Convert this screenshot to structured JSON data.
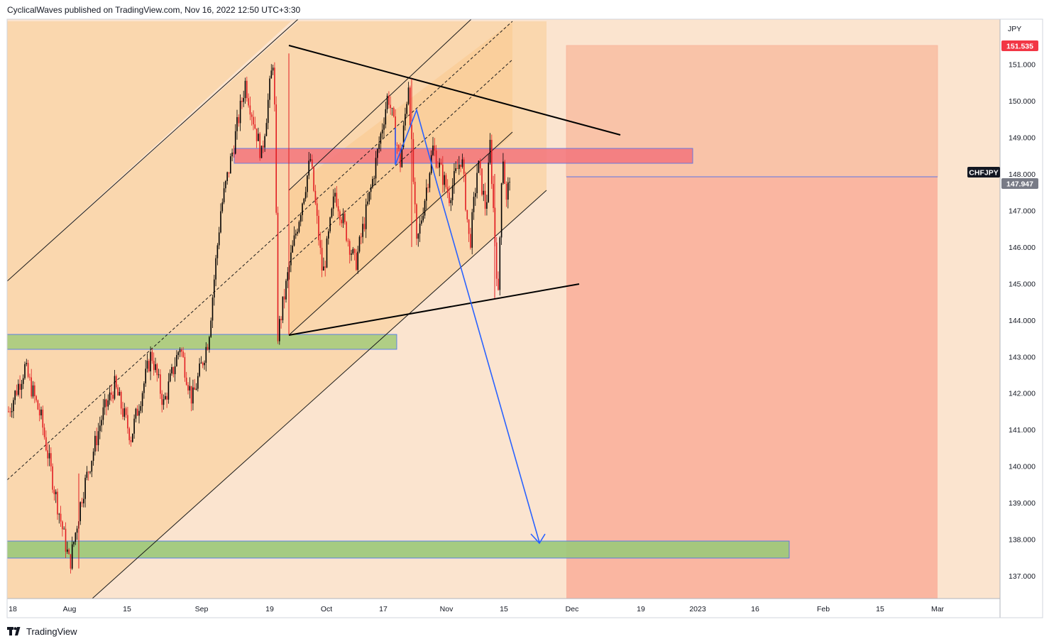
{
  "header": {
    "text": "CyclicalWaves published on TradingView.com, Nov 16, 2022 12:50 UTC+3:30"
  },
  "footer": {
    "brand": "TradingView"
  },
  "colors": {
    "background": "#fbe4cf",
    "channel_fill": "#fad5aa",
    "resistance_zone": "#f4757c",
    "support_zone": "#9cc97a",
    "target_zone": "#fa8f7c",
    "candle_up": "#000000",
    "candle_down": "#e11d22",
    "projection_arrow": "#2962ff",
    "price_tag": "#f23645",
    "current_tag": "#787b86"
  },
  "chart_data": {
    "type": "candlestick",
    "symbol": "CHFJPY",
    "currency": "JPY",
    "x_ticks": [
      "18",
      "Aug",
      "15",
      "Sep",
      "19",
      "Oct",
      "17",
      "Nov",
      "15",
      "Dec",
      "19",
      "2023",
      "16",
      "Feb",
      "15",
      "Mar"
    ],
    "y_ticks": [
      "151.000",
      "150.000",
      "149.000",
      "148.000",
      "147.000",
      "146.000",
      "145.000",
      "144.000",
      "143.000",
      "142.000",
      "141.000",
      "140.000",
      "139.000",
      "138.000",
      "137.000"
    ],
    "ylim": [
      136.4,
      152.5
    ],
    "last_price": "147.947",
    "last_price_value": 147.947,
    "target_price_label": "151.535",
    "target_price_value": 151.535,
    "price_path": [
      {
        "date": "Jul 18",
        "value": 141.5
      },
      {
        "date": "Jul 22",
        "value": 142.7
      },
      {
        "date": "Jul 26",
        "value": 141.3
      },
      {
        "date": "Jul 29",
        "value": 139.5
      },
      {
        "date": "Aug 2",
        "value": 137.3
      },
      {
        "date": "Aug 5",
        "value": 139.2
      },
      {
        "date": "Aug 10",
        "value": 141.4
      },
      {
        "date": "Aug 13",
        "value": 142.2
      },
      {
        "date": "Aug 17",
        "value": 140.8
      },
      {
        "date": "Aug 22",
        "value": 143.1
      },
      {
        "date": "Aug 25",
        "value": 141.7
      },
      {
        "date": "Aug 29",
        "value": 143.3
      },
      {
        "date": "Sep 1",
        "value": 141.8
      },
      {
        "date": "Sep 5",
        "value": 143.5
      },
      {
        "date": "Sep 8",
        "value": 147.0
      },
      {
        "date": "Sep 11",
        "value": 148.7
      },
      {
        "date": "Sep 14",
        "value": 150.5
      },
      {
        "date": "Sep 18",
        "value": 148.5
      },
      {
        "date": "Sep 21",
        "value": 151.3
      },
      {
        "date": "Sep 22",
        "value": 143.6
      },
      {
        "date": "Sep 25",
        "value": 145.6
      },
      {
        "date": "Sep 30",
        "value": 148.4
      },
      {
        "date": "Oct 3",
        "value": 145.2
      },
      {
        "date": "Oct 6",
        "value": 147.5
      },
      {
        "date": "Oct 11",
        "value": 145.5
      },
      {
        "date": "Oct 15",
        "value": 147.7
      },
      {
        "date": "Oct 19",
        "value": 150.2
      },
      {
        "date": "Oct 22",
        "value": 148.3
      },
      {
        "date": "Oct 24",
        "value": 150.5
      },
      {
        "date": "Oct 26",
        "value": 146.0
      },
      {
        "date": "Oct 30",
        "value": 148.7
      },
      {
        "date": "Nov 3",
        "value": 147.4
      },
      {
        "date": "Nov 6",
        "value": 148.5
      },
      {
        "date": "Nov 8",
        "value": 146.0
      },
      {
        "date": "Nov 10",
        "value": 148.3
      },
      {
        "date": "Nov 12",
        "value": 147.0
      },
      {
        "date": "Nov 13",
        "value": 148.8
      },
      {
        "date": "Nov 14",
        "value": 146.6
      },
      {
        "date": "Nov 15",
        "value": 144.6
      },
      {
        "date": "Nov 16",
        "value": 148.8
      },
      {
        "date": "Nov 17",
        "value": 147.2
      },
      {
        "date": "Nov 18",
        "value": 148.2
      }
    ],
    "zones": [
      {
        "name": "resistance",
        "low": 148.3,
        "high": 148.7
      },
      {
        "name": "support-upper",
        "low": 143.2,
        "high": 143.6
      },
      {
        "name": "support-lower",
        "low": 137.5,
        "high": 137.9
      }
    ]
  }
}
